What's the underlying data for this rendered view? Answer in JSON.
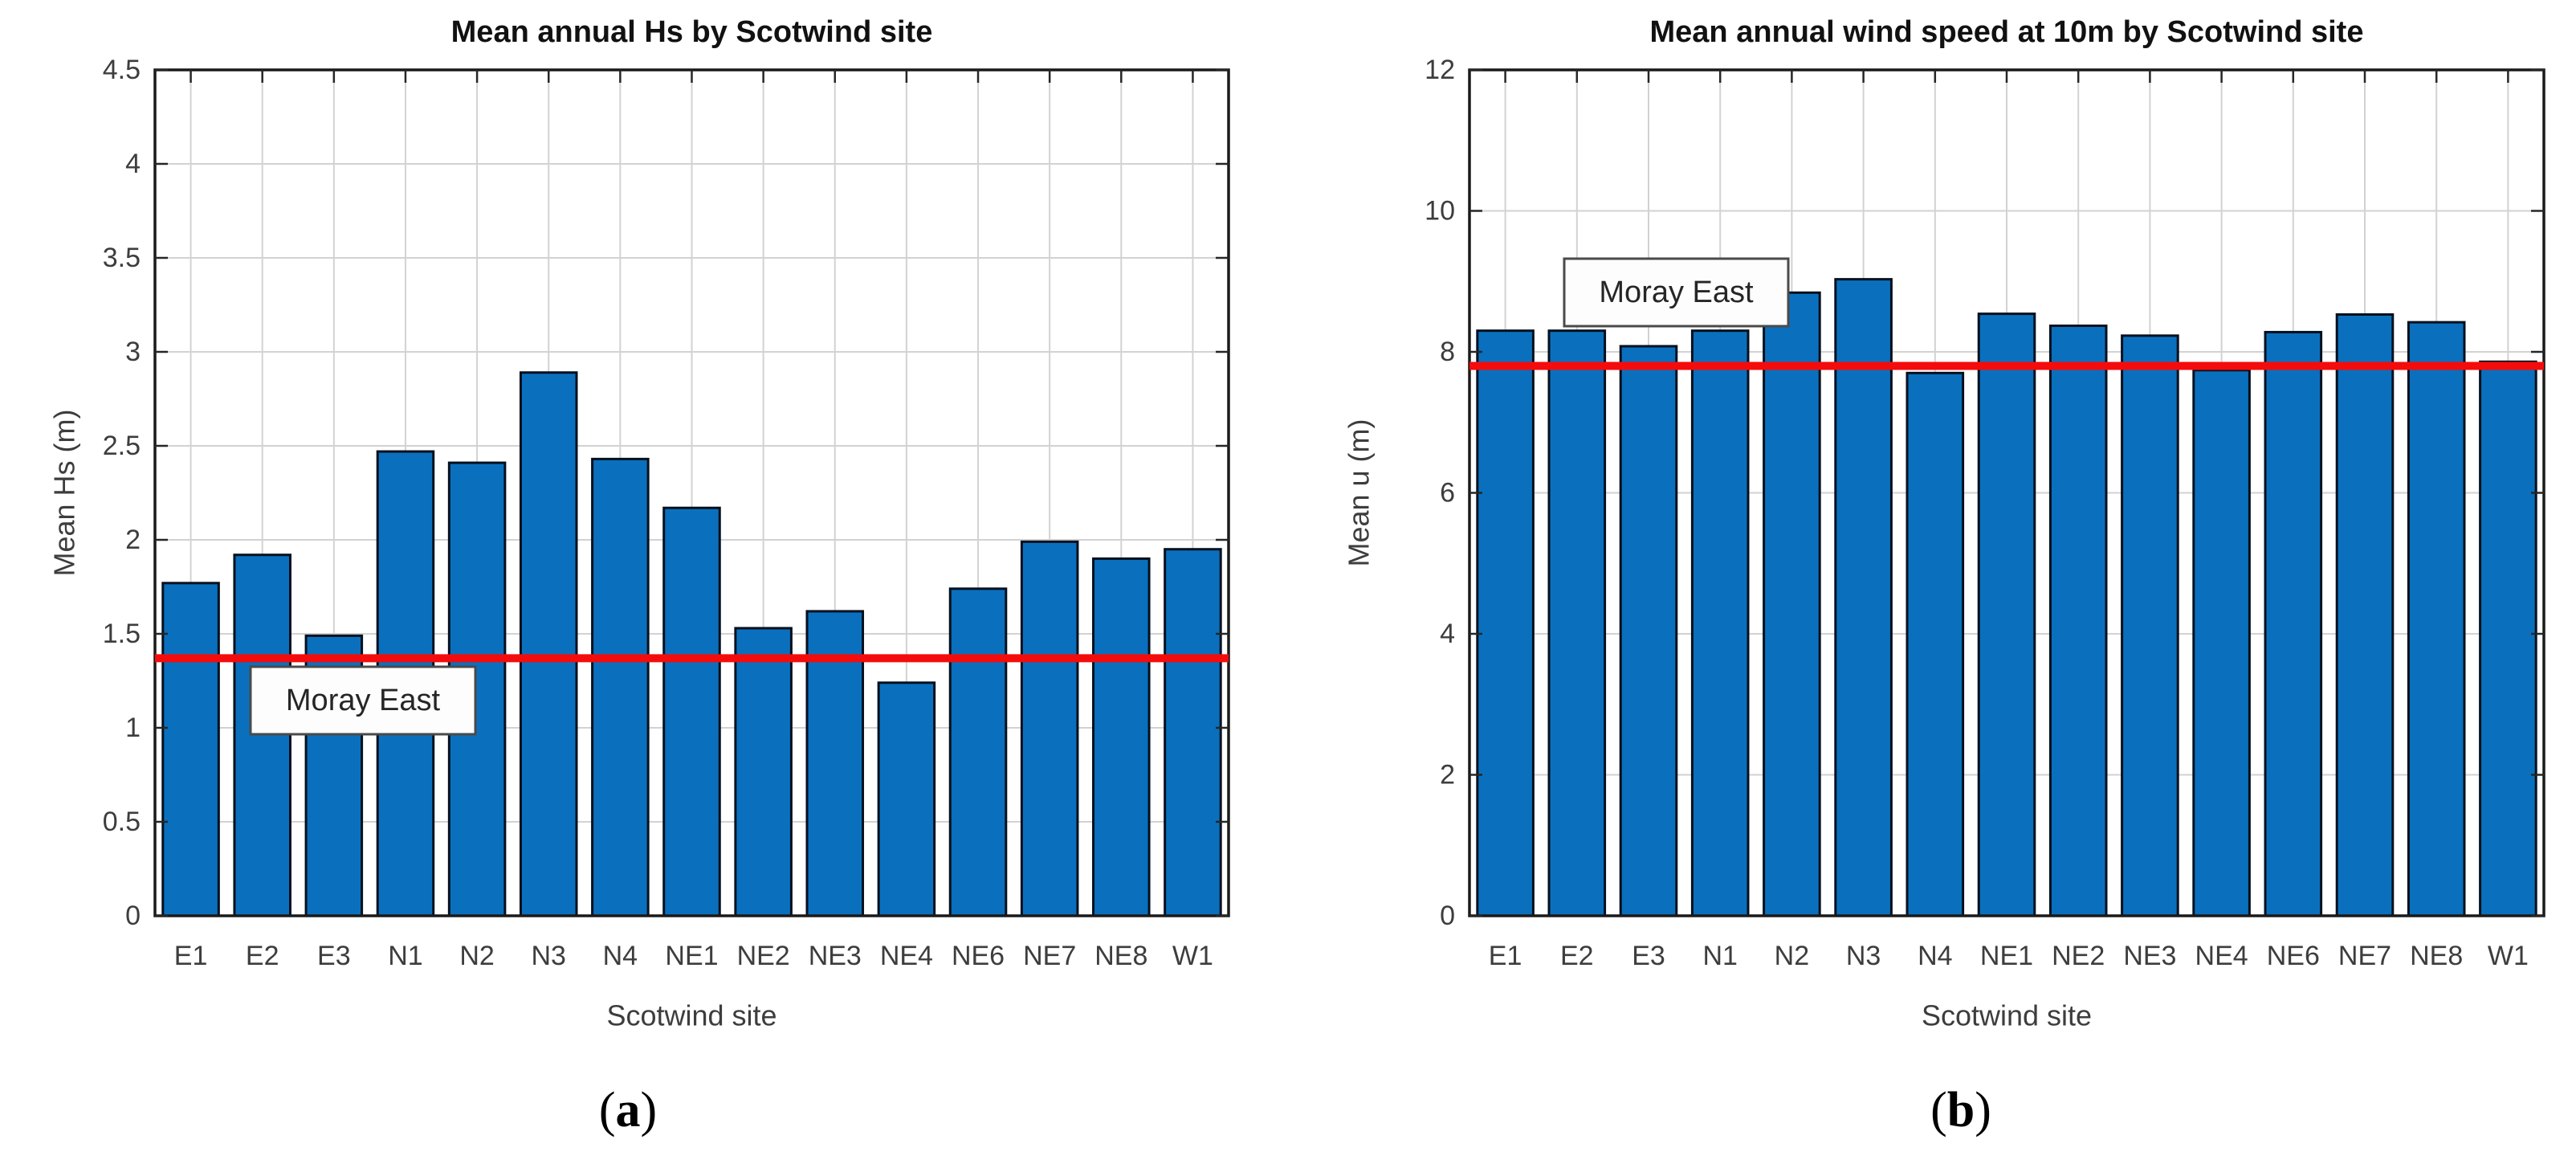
{
  "page": {
    "background": "#ffffff"
  },
  "style": {
    "bar_fill": "#0a70bd",
    "bar_edge": "#04101e",
    "axis_color": "#1a1a1a",
    "grid_color": "#d2d2d2",
    "tick_color": "#262626",
    "tick_label_color": "#3d3d3d",
    "title_color": "#111111",
    "reference_line_color": "#f40c0c",
    "annotation_box_fill": "#fdfdfd",
    "annotation_box_border": "#4a4a4a",
    "annotation_text_color": "#262626",
    "caption_color": "#000000"
  },
  "figure": {
    "captions": [
      {
        "open": "(",
        "letter": "a",
        "close": ")"
      },
      {
        "open": "(",
        "letter": "b",
        "close": ")"
      }
    ]
  },
  "chart_data": [
    {
      "type": "bar",
      "title": "Mean annual Hs by Scotwind site",
      "xlabel": "Scotwind site",
      "ylabel": "Mean Hs (m)",
      "categories": [
        "E1",
        "E2",
        "E3",
        "N1",
        "N2",
        "N3",
        "N4",
        "NE1",
        "NE2",
        "NE3",
        "NE4",
        "NE6",
        "NE7",
        "NE8",
        "W1"
      ],
      "values": [
        1.77,
        1.92,
        1.49,
        2.47,
        2.41,
        2.89,
        2.43,
        2.17,
        1.53,
        1.62,
        1.24,
        1.74,
        1.99,
        1.9,
        1.95
      ],
      "ylim": [
        0,
        4.5
      ],
      "ytick_step": 0.5,
      "ytick_labels": [
        "0",
        "0.5",
        "1",
        "1.5",
        "2",
        "2.5",
        "3",
        "3.5",
        "4",
        "4.5"
      ],
      "grid": true,
      "legend": "none",
      "reference_line": {
        "value": 1.37,
        "label": "Moray East"
      },
      "caption": "(a)"
    },
    {
      "type": "bar",
      "title": "Mean annual wind speed at 10m by Scotwind site",
      "xlabel": "Scotwind site",
      "ylabel": "Mean u (m)",
      "categories": [
        "E1",
        "E2",
        "E3",
        "N1",
        "N2",
        "N3",
        "N4",
        "NE1",
        "NE2",
        "NE3",
        "NE4",
        "NE6",
        "NE7",
        "NE8",
        "W1"
      ],
      "values": [
        8.3,
        8.3,
        8.08,
        8.3,
        8.84,
        9.03,
        7.7,
        8.54,
        8.37,
        8.23,
        7.74,
        8.28,
        8.53,
        8.42,
        7.86
      ],
      "ylim": [
        0,
        12
      ],
      "ytick_step": 2,
      "ytick_labels": [
        "0",
        "2",
        "4",
        "6",
        "8",
        "10",
        "12"
      ],
      "grid": true,
      "legend": "none",
      "reference_line": {
        "value": 7.8,
        "label": "Moray East"
      },
      "caption": "(b)"
    }
  ]
}
